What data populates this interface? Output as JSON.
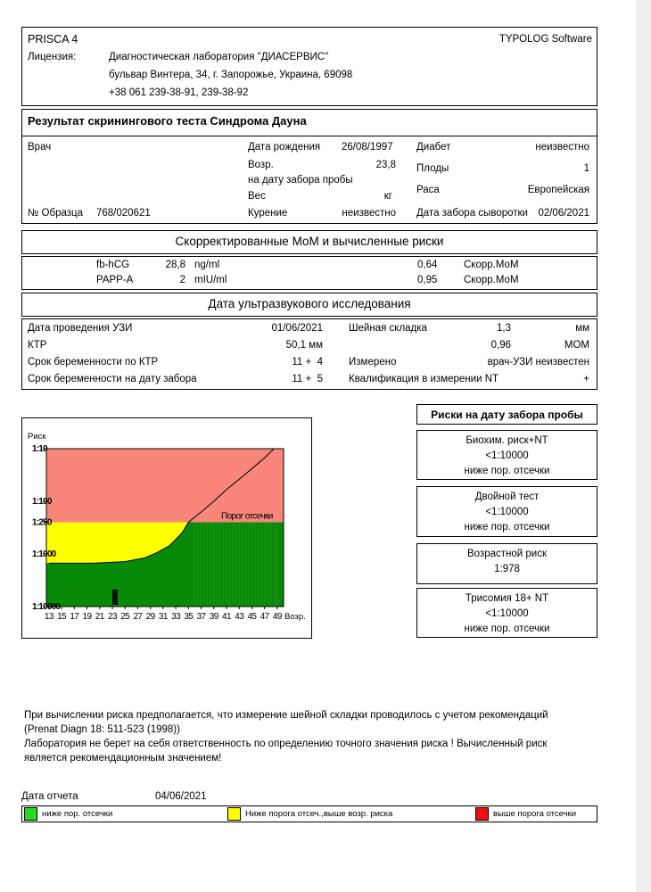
{
  "header": {
    "program": "PRISCA 4",
    "vendor": "TYPOLOG Software",
    "license_label": "Лицензия:",
    "lab": [
      "Диагностическая лаборатория \"ДИАСЕРВИС\"",
      "бульвар Винтера, 34, г. Запорожье, Украина, 69098",
      "+38 061 239-38-91, 239-38-92"
    ]
  },
  "patient": {
    "title": "Результат скринингового теста Синдрома Дауна",
    "doctor_label": "Врач",
    "birth_label": "Дата рождения",
    "birth": "26/08/1997",
    "age_label": "Возр.",
    "age": "23,8",
    "age_note": "на дату забора пробы",
    "weight_label": "Вес",
    "weight_unit": "кг",
    "sample_label": "№ Образца",
    "sample": "768/020621",
    "smoking_label": "Курение",
    "smoking": "неизвестно",
    "diabetes_label": "Диабет",
    "diabetes": "неизвестно",
    "fetuses_label": "Плоды",
    "fetuses": "1",
    "race_label": "Раса",
    "race": "Европейская",
    "serum_date_label": "Дата забора сыворотки",
    "serum_date": "02/06/2021"
  },
  "markers": {
    "title": "Скорректированные МоМ и вычисленные риски",
    "rows": [
      [
        "fb-hCG",
        "28,8",
        "ng/ml",
        "0,64",
        "Скорр.МоМ"
      ],
      [
        "PAPP-A",
        "2",
        "mIU/ml",
        "0,95",
        "Скорр.МоМ"
      ]
    ]
  },
  "ultrasound": {
    "title": "Дата ультразвукового исследования",
    "rows": [
      [
        "Дата проведения УЗИ",
        "01/06/2021",
        "Шейная складка",
        "1,3",
        "мм"
      ],
      [
        "КТР",
        "50,1 мм",
        "",
        "0,96",
        "МОМ"
      ],
      [
        "Срок беременности по КТР",
        "11 +  4",
        "Измерено",
        "",
        "врач-УЗИ неизвестен"
      ],
      [
        "Срок беременности на дату забора",
        "11 +  5",
        "Квалификация в измерении NT",
        "",
        "+"
      ]
    ]
  },
  "risk_chart": {
    "type": "line",
    "y_label": "Риск",
    "x_label": "Возр.",
    "threshold_label": "Порог отсечки",
    "threshold": 250,
    "log_y": true,
    "xlim": [
      12.6,
      50
    ],
    "ylim": [
      10,
      10000
    ],
    "xticks": [
      13,
      15,
      17,
      19,
      21,
      23,
      25,
      27,
      29,
      31,
      33,
      35,
      37,
      39,
      41,
      43,
      45,
      47,
      49
    ],
    "yticks": [
      {
        "value": 10,
        "label": "1:10"
      },
      {
        "value": 100,
        "label": "1:100"
      },
      {
        "value": 250,
        "label": "1:250"
      },
      {
        "value": 1000,
        "label": "1:1000"
      },
      {
        "value": 10000,
        "label": "1:10000"
      }
    ],
    "x": [
      13,
      20,
      25,
      28,
      30,
      32,
      34,
      35,
      37,
      39,
      41,
      43,
      45,
      47,
      48.5
    ],
    "values": [
      1500,
      1500,
      1400,
      1200,
      950,
      700,
      400,
      250,
      160,
      100,
      60,
      38,
      24,
      15,
      10
    ],
    "colors": {
      "high": "#f8867b",
      "mid": "#ffff00",
      "low": "#078a07",
      "line": "#000000"
    }
  },
  "risks": {
    "title": "Риски на дату забора пробы",
    "items": [
      {
        "name": "Биохим. риск+NT",
        "value": "<1:10000",
        "note": "ниже пор. отсечки"
      },
      {
        "name": "Двойной тест",
        "value": "<1:10000",
        "note": "ниже пор. отсечки"
      },
      {
        "name": "Возрастной риск",
        "value": "1:978"
      },
      {
        "name": "Трисомия 18+ NT",
        "value": "<1:10000",
        "note": "ниже пор. отсечки"
      }
    ]
  },
  "notes": [
    "При вычислении риска предполагается, что измерение шейной складки проводилось с учетом рекомендаций",
    "(Prenat Diagn 18: 511-523 (1998))",
    "Лаборатория не берет на себя ответственность по определению точного значения риска ! Вычисленный риск",
    "является рекомендационным значением!"
  ],
  "report": {
    "date_label": "Дата отчета",
    "date": "04/06/2021"
  },
  "legend": [
    {
      "color": "#22dd22",
      "label": "ниже пор. отсечки"
    },
    {
      "color": "#ffff00",
      "label": "Ниже порога отсеч.,выше возр. риска"
    },
    {
      "color": "#ee1111",
      "label": "выше порога отсечки"
    }
  ]
}
